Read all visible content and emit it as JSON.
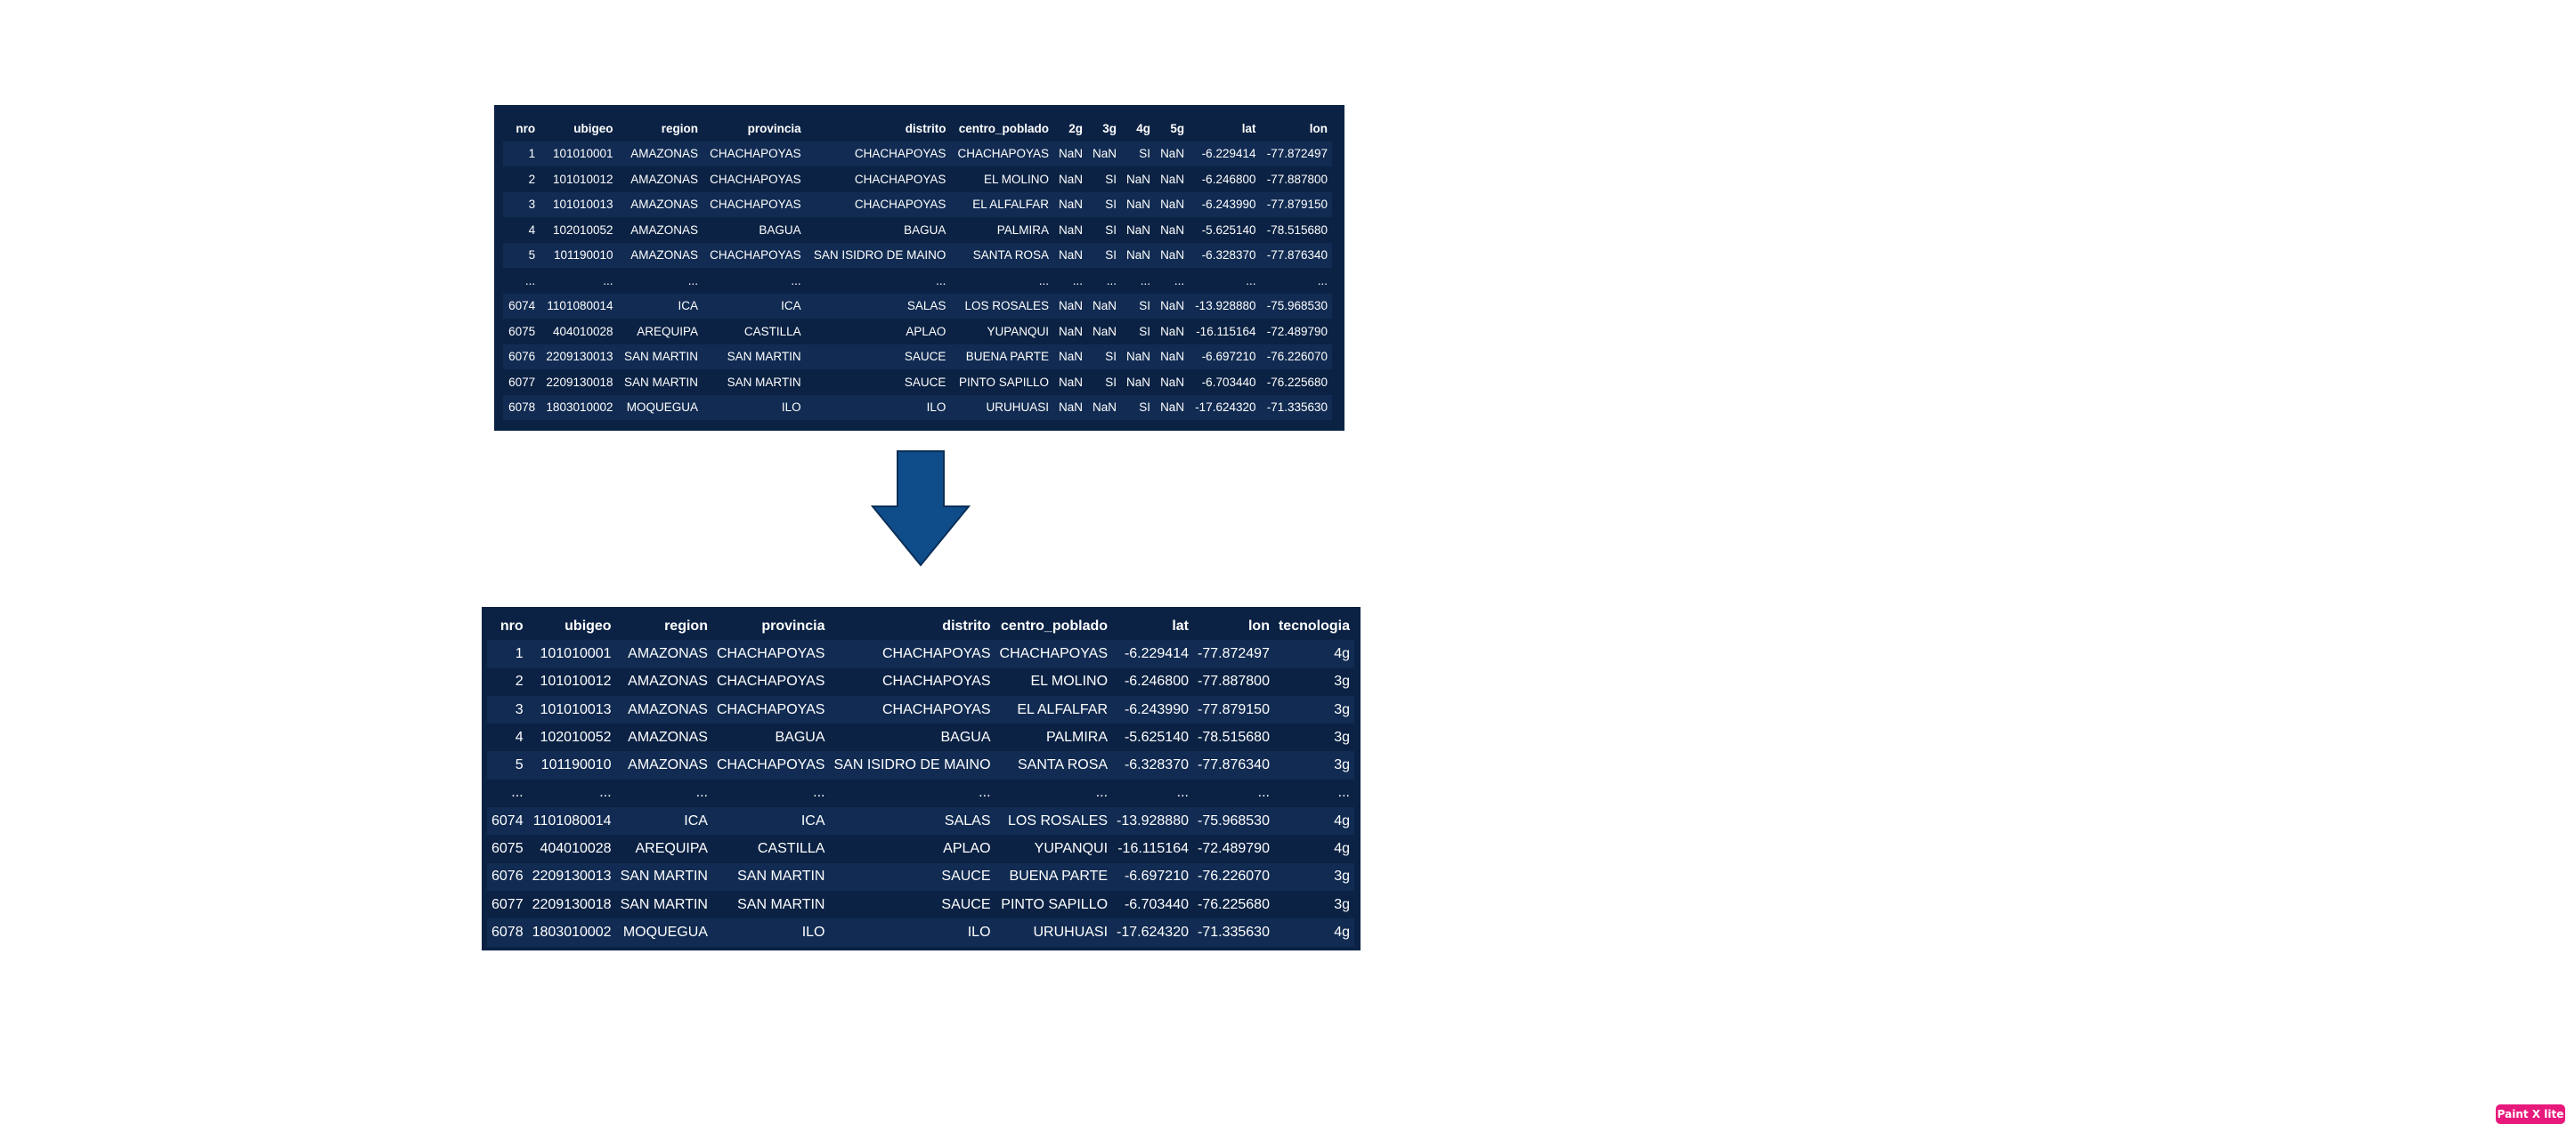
{
  "table_before": {
    "headers": [
      "nro",
      "ubigeo",
      "region",
      "provincia",
      "distrito",
      "centro_poblado",
      "2g",
      "3g",
      "4g",
      "5g",
      "lat",
      "lon"
    ],
    "rows": [
      [
        "1",
        "101010001",
        "AMAZONAS",
        "CHACHAPOYAS",
        "CHACHAPOYAS",
        "CHACHAPOYAS",
        "NaN",
        "NaN",
        "SI",
        "NaN",
        "-6.229414",
        "-77.872497"
      ],
      [
        "2",
        "101010012",
        "AMAZONAS",
        "CHACHAPOYAS",
        "CHACHAPOYAS",
        "EL MOLINO",
        "NaN",
        "SI",
        "NaN",
        "NaN",
        "-6.246800",
        "-77.887800"
      ],
      [
        "3",
        "101010013",
        "AMAZONAS",
        "CHACHAPOYAS",
        "CHACHAPOYAS",
        "EL ALFALFAR",
        "NaN",
        "SI",
        "NaN",
        "NaN",
        "-6.243990",
        "-77.879150"
      ],
      [
        "4",
        "102010052",
        "AMAZONAS",
        "BAGUA",
        "BAGUA",
        "PALMIRA",
        "NaN",
        "SI",
        "NaN",
        "NaN",
        "-5.625140",
        "-78.515680"
      ],
      [
        "5",
        "101190010",
        "AMAZONAS",
        "CHACHAPOYAS",
        "SAN ISIDRO DE MAINO",
        "SANTA ROSA",
        "NaN",
        "SI",
        "NaN",
        "NaN",
        "-6.328370",
        "-77.876340"
      ],
      [
        "...",
        "...",
        "...",
        "...",
        "...",
        "...",
        "...",
        "...",
        "...",
        "...",
        "...",
        "..."
      ],
      [
        "6074",
        "1101080014",
        "ICA",
        "ICA",
        "SALAS",
        "LOS ROSALES",
        "NaN",
        "NaN",
        "SI",
        "NaN",
        "-13.928880",
        "-75.968530"
      ],
      [
        "6075",
        "404010028",
        "AREQUIPA",
        "CASTILLA",
        "APLAO",
        "YUPANQUI",
        "NaN",
        "NaN",
        "SI",
        "NaN",
        "-16.115164",
        "-72.489790"
      ],
      [
        "6076",
        "2209130013",
        "SAN MARTIN",
        "SAN MARTIN",
        "SAUCE",
        "BUENA PARTE",
        "NaN",
        "SI",
        "NaN",
        "NaN",
        "-6.697210",
        "-76.226070"
      ],
      [
        "6077",
        "2209130018",
        "SAN MARTIN",
        "SAN MARTIN",
        "SAUCE",
        "PINTO SAPILLO",
        "NaN",
        "SI",
        "NaN",
        "NaN",
        "-6.703440",
        "-76.225680"
      ],
      [
        "6078",
        "1803010002",
        "MOQUEGUA",
        "ILO",
        "ILO",
        "URUHUASI",
        "NaN",
        "NaN",
        "SI",
        "NaN",
        "-17.624320",
        "-71.335630"
      ]
    ]
  },
  "table_after": {
    "headers": [
      "nro",
      "ubigeo",
      "region",
      "provincia",
      "distrito",
      "centro_poblado",
      "lat",
      "lon",
      "tecnologia"
    ],
    "rows": [
      [
        "1",
        "101010001",
        "AMAZONAS",
        "CHACHAPOYAS",
        "CHACHAPOYAS",
        "CHACHAPOYAS",
        "-6.229414",
        "-77.872497",
        "4g"
      ],
      [
        "2",
        "101010012",
        "AMAZONAS",
        "CHACHAPOYAS",
        "CHACHAPOYAS",
        "EL MOLINO",
        "-6.246800",
        "-77.887800",
        "3g"
      ],
      [
        "3",
        "101010013",
        "AMAZONAS",
        "CHACHAPOYAS",
        "CHACHAPOYAS",
        "EL ALFALFAR",
        "-6.243990",
        "-77.879150",
        "3g"
      ],
      [
        "4",
        "102010052",
        "AMAZONAS",
        "BAGUA",
        "BAGUA",
        "PALMIRA",
        "-5.625140",
        "-78.515680",
        "3g"
      ],
      [
        "5",
        "101190010",
        "AMAZONAS",
        "CHACHAPOYAS",
        "SAN ISIDRO DE MAINO",
        "SANTA ROSA",
        "-6.328370",
        "-77.876340",
        "3g"
      ],
      [
        "...",
        "...",
        "...",
        "...",
        "...",
        "...",
        "...",
        "...",
        "..."
      ],
      [
        "6074",
        "1101080014",
        "ICA",
        "ICA",
        "SALAS",
        "LOS ROSALES",
        "-13.928880",
        "-75.968530",
        "4g"
      ],
      [
        "6075",
        "404010028",
        "AREQUIPA",
        "CASTILLA",
        "APLAO",
        "YUPANQUI",
        "-16.115164",
        "-72.489790",
        "4g"
      ],
      [
        "6076",
        "2209130013",
        "SAN MARTIN",
        "SAN MARTIN",
        "SAUCE",
        "BUENA PARTE",
        "-6.697210",
        "-76.226070",
        "3g"
      ],
      [
        "6077",
        "2209130018",
        "SAN MARTIN",
        "SAN MARTIN",
        "SAUCE",
        "PINTO SAPILLO",
        "-6.703440",
        "-76.225680",
        "3g"
      ],
      [
        "6078",
        "1803010002",
        "MOQUEGUA",
        "ILO",
        "ILO",
        "URUHUASI",
        "-17.624320",
        "-71.335630",
        "4g"
      ]
    ]
  },
  "arrow": {
    "icon": "down-arrow-icon",
    "fill_color": "#0f4c8a",
    "stroke_color": "#0a2f57"
  },
  "badge": {
    "label": "Paint X lite",
    "color": "#e8197c"
  },
  "colors": {
    "table_background": "#0b2244",
    "table_row_alt": "#112b52",
    "table_text": "#ffffff"
  }
}
